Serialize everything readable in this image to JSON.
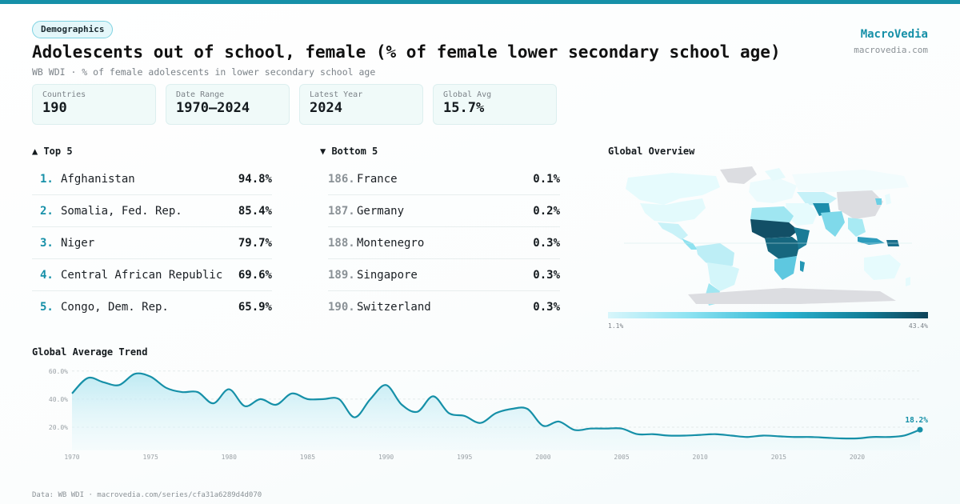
{
  "category": "Demographics",
  "title": "Adolescents out of school, female (% of female lower secondary school age)",
  "subtitle": "WB WDI · % of female adolescents in lower secondary school age",
  "brand": {
    "name": "MacroVedia",
    "url": "macrovedia.com"
  },
  "stats": [
    {
      "label": "Countries",
      "value": "190"
    },
    {
      "label": "Date Range",
      "value": "1970–2024"
    },
    {
      "label": "Latest Year",
      "value": "2024"
    },
    {
      "label": "Global Avg",
      "value": "15.7%"
    }
  ],
  "top5": {
    "heading": "▲ Top 5",
    "items": [
      {
        "rank": "1.",
        "name": "Afghanistan",
        "value": "94.8%"
      },
      {
        "rank": "2.",
        "name": "Somalia, Fed. Rep.",
        "value": "85.4%"
      },
      {
        "rank": "3.",
        "name": "Niger",
        "value": "79.7%"
      },
      {
        "rank": "4.",
        "name": "Central African Republic",
        "value": "69.6%"
      },
      {
        "rank": "5.",
        "name": "Congo, Dem. Rep.",
        "value": "65.9%"
      }
    ]
  },
  "bottom5": {
    "heading": "▼ Bottom 5",
    "items": [
      {
        "rank": "186.",
        "name": "France",
        "value": "0.1%"
      },
      {
        "rank": "187.",
        "name": "Germany",
        "value": "0.2%"
      },
      {
        "rank": "188.",
        "name": "Montenegro",
        "value": "0.3%"
      },
      {
        "rank": "189.",
        "name": "Singapore",
        "value": "0.3%"
      },
      {
        "rank": "190.",
        "name": "Switzerland",
        "value": "0.3%"
      }
    ]
  },
  "map": {
    "heading": "Global Overview",
    "legend_min": "1.1%",
    "legend_max": "43.4%"
  },
  "colors": {
    "accent": "#1690a8",
    "area_fill": "#cdeef5",
    "line": "#1690a8"
  },
  "chart_data": {
    "type": "area",
    "title": "Global Average Trend",
    "x": [
      1970,
      1971,
      1972,
      1973,
      1974,
      1975,
      1976,
      1977,
      1978,
      1979,
      1980,
      1981,
      1982,
      1983,
      1984,
      1985,
      1986,
      1987,
      1988,
      1989,
      1990,
      1991,
      1992,
      1993,
      1994,
      1995,
      1996,
      1997,
      1998,
      1999,
      2000,
      2001,
      2002,
      2003,
      2004,
      2005,
      2006,
      2007,
      2008,
      2009,
      2010,
      2011,
      2012,
      2013,
      2014,
      2015,
      2016,
      2017,
      2018,
      2019,
      2020,
      2021,
      2022,
      2023,
      2024
    ],
    "series": [
      {
        "values": [
          44,
          55,
          52,
          50,
          58,
          56,
          48,
          45,
          45,
          37,
          47,
          35,
          40,
          36,
          44,
          40,
          40,
          40,
          27,
          40,
          50,
          36,
          31,
          42,
          30,
          28,
          23,
          30,
          33,
          33,
          21,
          24,
          18,
          19,
          19,
          19,
          15,
          15,
          14,
          14,
          14.5,
          15,
          14,
          13,
          14,
          13.5,
          13,
          13,
          12.5,
          12,
          12,
          13,
          13,
          14,
          18.2
        ]
      }
    ],
    "y_ticks": [
      "60.0%",
      "40.0%",
      "20.0%"
    ],
    "y_tick_values": [
      60,
      40,
      20
    ],
    "x_ticks": [
      "1970",
      "1975",
      "1980",
      "1985",
      "1990",
      "1995",
      "2000",
      "2005",
      "2010",
      "2015",
      "2020"
    ],
    "ylim": [
      8,
      65
    ],
    "end_label": "18.2%",
    "grid": true
  },
  "footer": "Data: WB WDI · macrovedia.com/series/cfa31a6289d4d070"
}
